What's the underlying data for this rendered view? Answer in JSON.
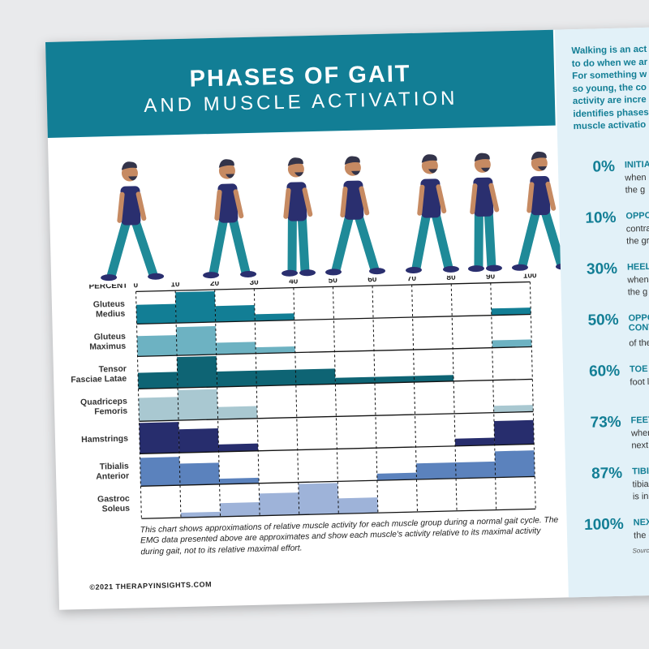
{
  "header": {
    "title": "PHASES OF GAIT",
    "subtitle": "AND MUSCLE ACTIVATION"
  },
  "intro_text": "Walking is an act\nto do when we ar\nFor something w\nso young, the co\nactivity are incre\nidentifies phases\nmuscle activatio",
  "phases": [
    {
      "percent": "0%",
      "title": "INITIA",
      "desc": "when\nthe g"
    },
    {
      "percent": "10%",
      "title": "OPPO",
      "desc": "contra\nthe gr"
    },
    {
      "percent": "30%",
      "title": "HEEL",
      "desc": "when\nthe g"
    },
    {
      "percent": "50%",
      "title": "OPPO\nCONT",
      "desc": "\nof the"
    },
    {
      "percent": "60%",
      "title": "TOE",
      "desc": "foot l"
    },
    {
      "percent": "73%",
      "title": "FEET",
      "desc": "when\nnext"
    },
    {
      "percent": "87%",
      "title": "TIBIA",
      "desc": "tibia\nis in a"
    },
    {
      "percent": "100%",
      "title": "NEX",
      "desc": "the c"
    }
  ],
  "source": "Source",
  "caption": "This chart shows approximations of relative muscle activity for each muscle group during a normal gait cycle. The EMG data presented above are approximates and show each muscle's activity relative to its maximal activity during gait, not to its relative maximal effort.",
  "footer": "©2021 THERAPYINSIGHTS.COM",
  "icons": [
    "walking-man-icon"
  ],
  "chart_data": {
    "type": "bar",
    "xlabel": "PERCENT",
    "x_ticks": [
      0,
      10,
      20,
      30,
      40,
      50,
      60,
      70,
      80,
      90,
      100
    ],
    "value_scale": [
      0,
      1
    ],
    "series": [
      {
        "name": "Gluteus\nMedius",
        "color": "#127e95",
        "segments": [
          [
            0,
            10,
            0.62
          ],
          [
            10,
            20,
            1.0
          ],
          [
            20,
            30,
            0.52
          ],
          [
            30,
            40,
            0.22
          ],
          [
            90,
            100,
            0.22
          ]
        ]
      },
      {
        "name": "Gluteus\nMaximus",
        "color": "#6db2c2",
        "segments": [
          [
            0,
            10,
            0.66
          ],
          [
            10,
            20,
            0.92
          ],
          [
            20,
            30,
            0.38
          ],
          [
            30,
            40,
            0.2
          ],
          [
            90,
            100,
            0.24
          ]
        ]
      },
      {
        "name": "Tensor\nFasciae Latae",
        "color": "#0e6474",
        "segments": [
          [
            0,
            10,
            0.52
          ],
          [
            10,
            20,
            1.0
          ],
          [
            20,
            50,
            0.5
          ],
          [
            50,
            60,
            0.2
          ],
          [
            60,
            80,
            0.2
          ]
        ]
      },
      {
        "name": "Quadriceps\nFemoris",
        "color": "#a9c8d1",
        "segments": [
          [
            0,
            10,
            0.76
          ],
          [
            10,
            20,
            0.98
          ],
          [
            20,
            30,
            0.4
          ],
          [
            90,
            100,
            0.22
          ]
        ]
      },
      {
        "name": "Hamstrings",
        "color": "#272d6d",
        "segments": [
          [
            0,
            10,
            1.0
          ],
          [
            10,
            20,
            0.76
          ],
          [
            20,
            30,
            0.24
          ],
          [
            80,
            90,
            0.24
          ],
          [
            90,
            100,
            0.78
          ]
        ]
      },
      {
        "name": "Tibialis\nAnterior",
        "color": "#5b82bd",
        "segments": [
          [
            0,
            10,
            0.92
          ],
          [
            10,
            20,
            0.7
          ],
          [
            20,
            30,
            0.18
          ],
          [
            60,
            70,
            0.22
          ],
          [
            70,
            90,
            0.52
          ],
          [
            90,
            100,
            0.85
          ]
        ]
      },
      {
        "name": "Gastroc\nSoleus",
        "color": "#9eb3d9",
        "segments": [
          [
            10,
            20,
            0.16
          ],
          [
            20,
            30,
            0.44
          ],
          [
            30,
            40,
            0.72
          ],
          [
            40,
            50,
            1.0
          ],
          [
            50,
            60,
            0.5
          ]
        ]
      }
    ]
  }
}
